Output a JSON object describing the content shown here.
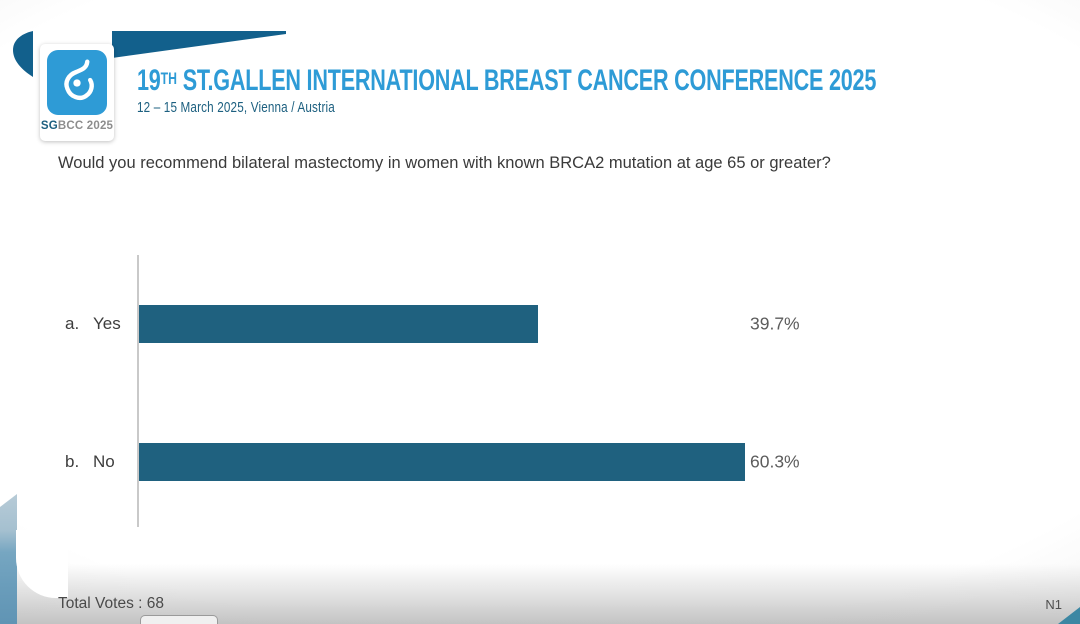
{
  "header": {
    "logo": {
      "icon": "sgbcc-breast-icon",
      "text_bold": "SG",
      "text_rest": "BCC 2025"
    },
    "title_number": "19",
    "title_superscript": "TH",
    "title_main": " ST.GALLEN INTERNATIONAL BREAST CANCER CONFERENCE 2025",
    "subtitle": "12 – 15 March 2025, Vienna / Austria"
  },
  "question": "Would you recommend bilateral mastectomy in women with known BRCA2 mutation at age 65 or greater?",
  "chart_data": {
    "type": "bar",
    "orientation": "horizontal",
    "categories": [
      "a. Yes",
      "b. No"
    ],
    "values": [
      39.7,
      60.3
    ],
    "value_labels": [
      "39.7%",
      "60.3%"
    ],
    "options": [
      {
        "letter": "a.",
        "label": "Yes",
        "value": 39.7,
        "value_label": "39.7%"
      },
      {
        "letter": "b.",
        "label": "No",
        "value": 60.3,
        "value_label": "60.3%"
      }
    ],
    "xlim": [
      0,
      100
    ],
    "grid": false,
    "legend": false,
    "bar_color": "#1f617f",
    "axis_color": "#c9c9c9"
  },
  "footer": {
    "total_votes": "Total Votes : 68",
    "slide_number": "N1"
  },
  "colors": {
    "title_blue": "#2e9bd6",
    "dark_blue": "#1d6080",
    "swoosh_blue": "#12608c",
    "corner_teal": "#3c87a3"
  }
}
